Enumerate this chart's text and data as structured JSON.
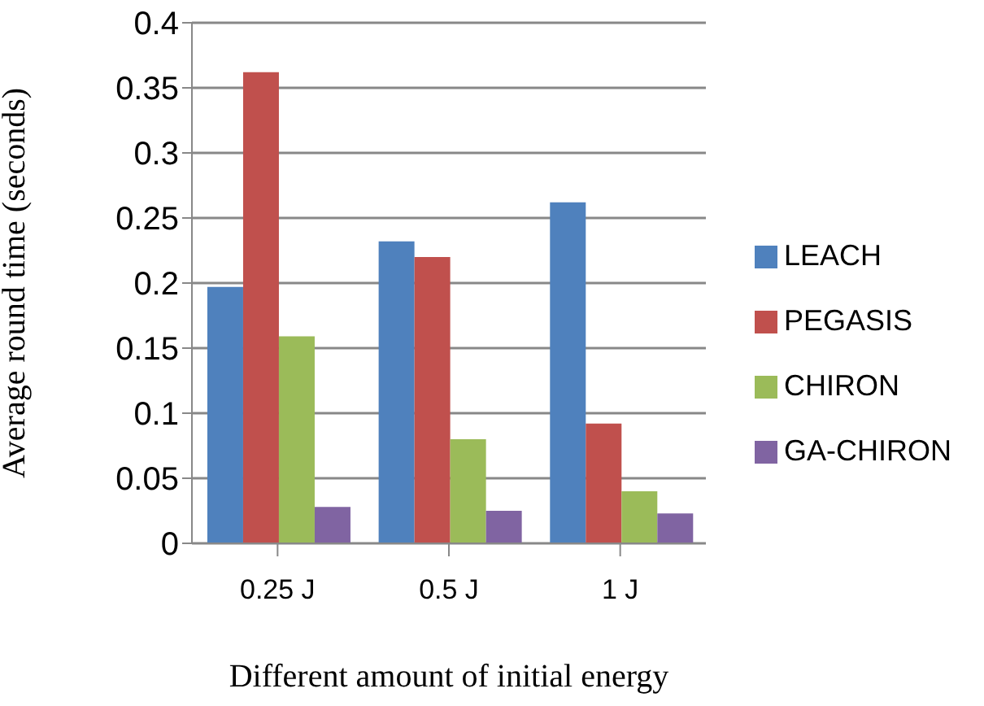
{
  "chart_data": {
    "type": "bar",
    "xlabel": "Different amount of initial energy",
    "ylabel": "Average round time  (seconds)",
    "categories": [
      "0.25 J",
      "0.5 J",
      "1 J"
    ],
    "series": [
      {
        "name": "LEACH",
        "color": "#4f81bd",
        "values": [
          0.197,
          0.232,
          0.262
        ]
      },
      {
        "name": "PEGASIS",
        "color": "#c0504d",
        "values": [
          0.362,
          0.22,
          0.092
        ]
      },
      {
        "name": "CHIRON",
        "color": "#9bbb59",
        "values": [
          0.159,
          0.08,
          0.04
        ]
      },
      {
        "name": "GA-CHIRON",
        "color": "#8064a2",
        "values": [
          0.028,
          0.025,
          0.023
        ]
      }
    ],
    "ylim": [
      0,
      0.4
    ],
    "yticks": [
      0,
      0.05,
      0.1,
      0.15,
      0.2,
      0.25,
      0.3,
      0.35,
      0.4
    ],
    "grid": "y",
    "legend": "right"
  }
}
